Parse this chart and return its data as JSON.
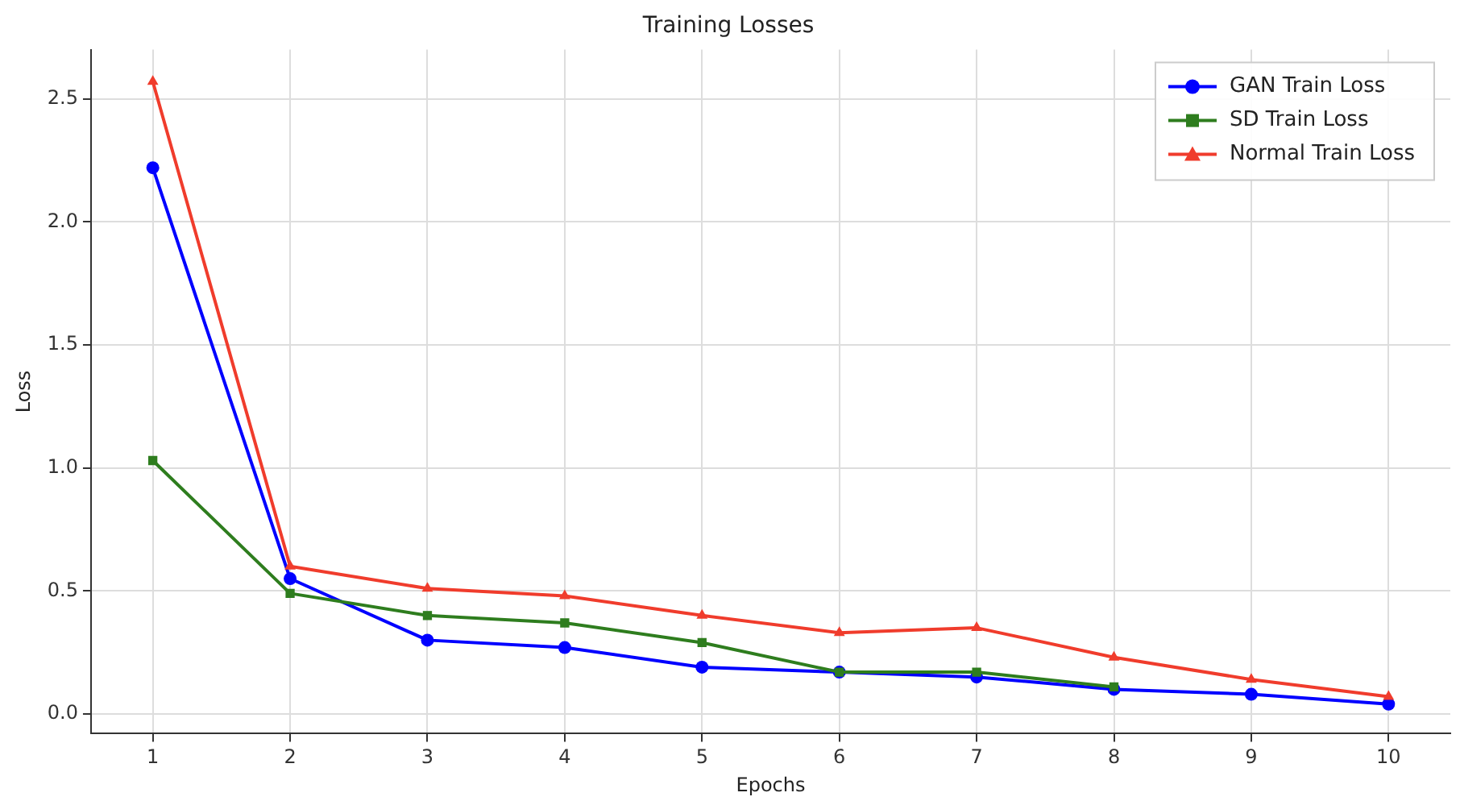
{
  "chart_data": {
    "type": "line",
    "title": "Training Losses",
    "xlabel": "Epochs",
    "ylabel": "Loss",
    "x": [
      1,
      2,
      3,
      4,
      5,
      6,
      7,
      8,
      9,
      10
    ],
    "series": [
      {
        "name": "GAN Train Loss",
        "color": "#0000ff",
        "marker": "circle",
        "values": [
          2.22,
          0.55,
          0.3,
          0.27,
          0.19,
          0.17,
          0.15,
          0.1,
          0.08,
          0.04
        ]
      },
      {
        "name": "SD Train Loss",
        "color": "#2e7d1e",
        "marker": "square",
        "values": [
          1.03,
          0.49,
          0.4,
          0.37,
          0.29,
          0.17,
          0.17,
          0.11,
          null,
          null
        ]
      },
      {
        "name": "Normal Train Loss",
        "color": "#f03c2c",
        "marker": "triangle",
        "values": [
          2.57,
          0.6,
          0.51,
          0.48,
          0.4,
          0.33,
          0.35,
          0.23,
          0.14,
          0.07
        ]
      }
    ],
    "xlim": [
      0.55,
      10.45
    ],
    "xticks": [
      1,
      2,
      3,
      4,
      5,
      6,
      7,
      8,
      9,
      10
    ],
    "ylim": [
      -0.08,
      2.7
    ],
    "yticks": [
      {
        "value": 0,
        "label": "0.0"
      },
      {
        "value": 0.5,
        "label": "0.5"
      },
      {
        "value": 1,
        "label": "1.0"
      },
      {
        "value": 1.5,
        "label": "1.5"
      },
      {
        "value": 2,
        "label": "2.0"
      },
      {
        "value": 2.5,
        "label": "2.5"
      }
    ],
    "grid": true,
    "legend": "top right",
    "line_style": "solid"
  }
}
